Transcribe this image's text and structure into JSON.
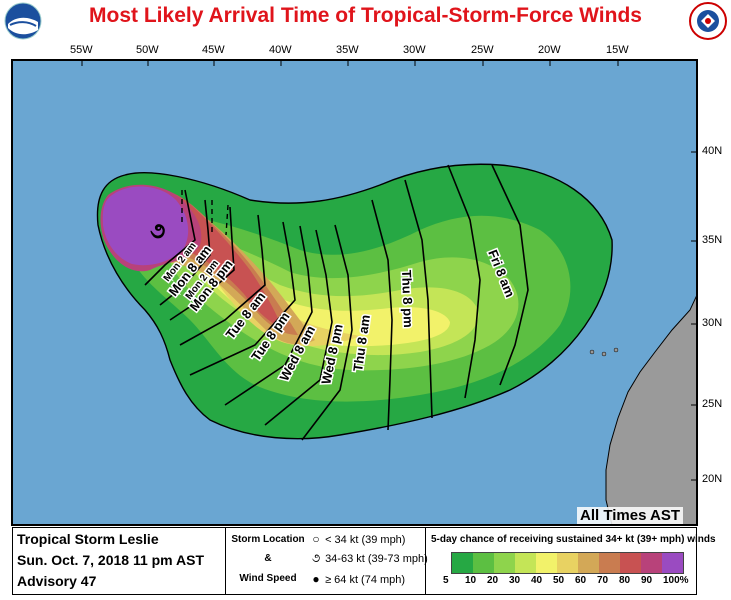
{
  "title": "Most Likely Arrival Time of Tropical-Storm-Force Winds",
  "longitudes": [
    "55W",
    "50W",
    "45W",
    "40W",
    "35W",
    "30W",
    "25W",
    "20W",
    "15W"
  ],
  "latitudes": [
    "40N",
    "35N",
    "30N",
    "25N",
    "20N"
  ],
  "time_labels": [
    "Mon 2 am",
    "Mon 8 am",
    "Mon 2 pm",
    "Mon 8 pm",
    "Tue 8 am",
    "Tue 8 pm",
    "Wed 8 am",
    "Wed 8 pm",
    "Thu 8 am",
    "Thu 8 pm",
    "Fri 8 am"
  ],
  "all_times": "All Times AST",
  "storm": {
    "name": "Tropical Storm Leslie",
    "datetime": "Sun. Oct. 7, 2018  11 pm AST",
    "advisory": "Advisory 47"
  },
  "legend": {
    "storm_location": "Storm Location",
    "amp": "&",
    "wind_speed": "Wind Speed",
    "items": [
      {
        "icon": "○",
        "text": "< 34 kt (39 mph)"
      },
      {
        "icon": "૭",
        "text": "34-63 kt (39-73 mph)"
      },
      {
        "icon": "●",
        "text": "≥ 64 kt (74 mph)"
      }
    ],
    "scale_title": "5-day chance of receiving sustained 34+ kt (39+ mph) winds",
    "scale_ticks": [
      "5",
      "10",
      "20",
      "30",
      "40",
      "50",
      "60",
      "70",
      "80",
      "90",
      "100%"
    ],
    "scale_colors": [
      "#26a844",
      "#5cbf42",
      "#8ed44c",
      "#c4e557",
      "#f2f26a",
      "#e8d262",
      "#d3a857",
      "#c97c50",
      "#c85252",
      "#b8427a",
      "#9a4bc1"
    ]
  },
  "colors": {
    "ocean": "#6aa6d2",
    "land": "#9a9a9a",
    "title": "#e0141b"
  }
}
